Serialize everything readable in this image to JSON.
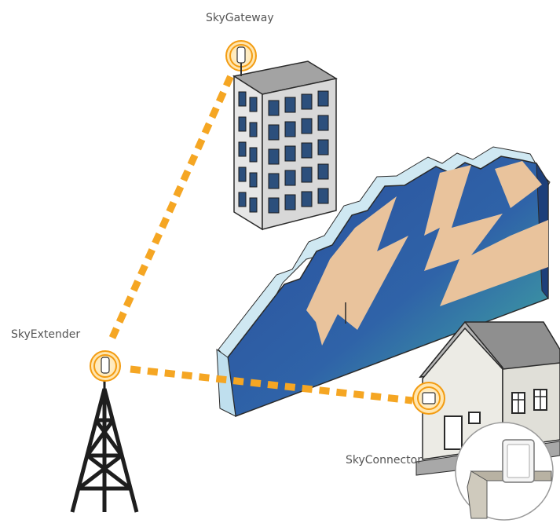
{
  "labels": {
    "gateway": "SkyGateway",
    "extender": "SkyExtender",
    "connector": "SkyConnector"
  },
  "colors": {
    "link": "#f5a623",
    "signal_ring": "#f39c12",
    "building_front": "#e4e4e4",
    "building_side": "#cfcfcf",
    "building_roof": "#a0a0a0",
    "window": "#2c4f7c",
    "wall_face_dark": "#2f57a0",
    "wall_face_teal": "#3aa6a0",
    "wall_lightning": "#e9c39c",
    "wall_edge": "#cfe9f2",
    "house_wall": "#e3e2dc",
    "house_roof": "#8d8d8d"
  },
  "icons": [
    "gateway-radio-icon",
    "extender-radio-icon",
    "connector-radio-icon",
    "tower-icon",
    "indoor-unit-icon"
  ]
}
